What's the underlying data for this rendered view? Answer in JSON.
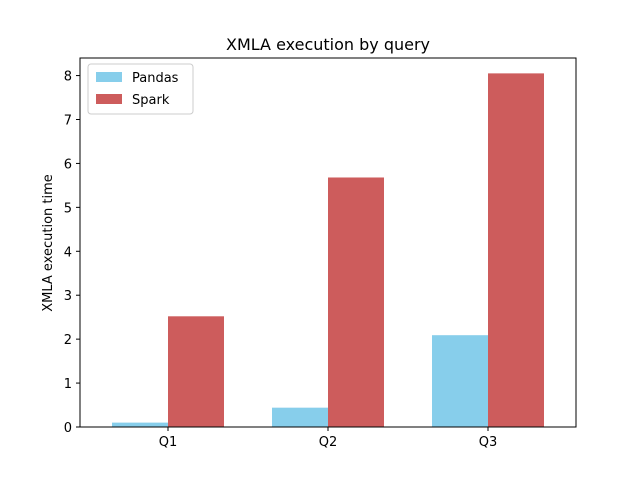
{
  "chart_data": {
    "type": "bar",
    "title": "XMLA execution by query",
    "xlabel": "",
    "ylabel": "XMLA execution time",
    "categories": [
      "Q1",
      "Q2",
      "Q3"
    ],
    "series": [
      {
        "name": "Pandas",
        "values": [
          0.1,
          0.44,
          2.09
        ],
        "color": "#87CEEB"
      },
      {
        "name": "Spark",
        "values": [
          2.52,
          5.68,
          8.05
        ],
        "color": "#CD5C5C"
      }
    ],
    "ylim": [
      0,
      8.4
    ],
    "yticks": [
      0,
      1,
      2,
      3,
      4,
      5,
      6,
      7,
      8
    ],
    "legend_position": "top-left",
    "grid": false
  }
}
